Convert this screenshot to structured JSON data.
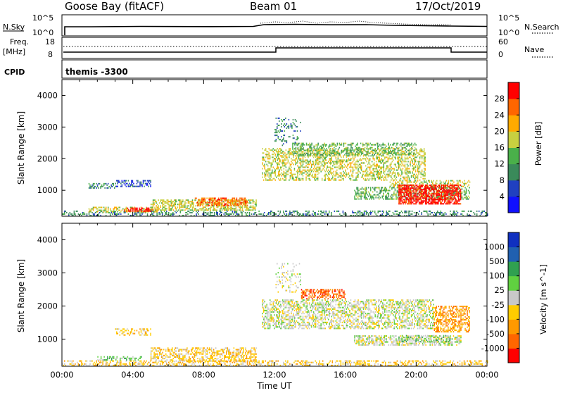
{
  "header": {
    "station": "Goose Bay (fitACF)",
    "beam": "Beam 01",
    "date": "17/Oct/2019"
  },
  "top_panels": {
    "nsky_label": "N.Sky",
    "nsearch_label": "N.Search",
    "nsky_ticks": [
      "10^5",
      "10^0"
    ],
    "nsearch_ticks": [
      "10^5",
      "10^0"
    ],
    "freq_label": "Freq.",
    "freq_unit": "[MHz]",
    "freq_ticks": [
      "18",
      "8"
    ],
    "nave_label": "Nave",
    "nave_ticks": [
      "60",
      "0"
    ],
    "cpid_label": "CPID",
    "cpid_value": "themis -3300"
  },
  "chart_data": [
    {
      "type": "heatmap",
      "name": "power-panel",
      "xlabel": "",
      "ylabel": "Slant Range [km]",
      "xlim": [
        0,
        24
      ],
      "ylim": [
        180,
        4500
      ],
      "yticks": [
        1000,
        2000,
        3000,
        4000
      ],
      "colorbar": {
        "label": "Power [dB]",
        "ticks": [
          "4",
          "8",
          "12",
          "16",
          "20",
          "24",
          "28"
        ],
        "colors": [
          "#1010ff",
          "#2040c0",
          "#3a8a5a",
          "#4ab04a",
          "#c8d040",
          "#ffaa00",
          "#ff6600",
          "#ff0000"
        ]
      },
      "regions": [
        {
          "t0": 0.0,
          "t1": 24.0,
          "r0": 180,
          "r1": 320,
          "level": 2,
          "density": 0.35
        },
        {
          "t0": 1.5,
          "t1": 5.5,
          "r0": 300,
          "r1": 450,
          "level": 4,
          "density": 0.5
        },
        {
          "t0": 3.5,
          "t1": 5.2,
          "r0": 320,
          "r1": 420,
          "level": 7,
          "density": 0.6
        },
        {
          "t0": 5.0,
          "t1": 11.0,
          "r0": 350,
          "r1": 700,
          "level": 4,
          "density": 0.55
        },
        {
          "t0": 7.5,
          "t1": 10.5,
          "r0": 500,
          "r1": 750,
          "level": 6,
          "density": 0.55
        },
        {
          "t0": 1.5,
          "t1": 3.0,
          "r0": 1050,
          "r1": 1200,
          "level": 2,
          "density": 0.5
        },
        {
          "t0": 3.0,
          "t1": 5.0,
          "r0": 1100,
          "r1": 1300,
          "level": 1,
          "density": 0.5
        },
        {
          "t0": 11.3,
          "t1": 20.5,
          "r0": 1300,
          "r1": 2300,
          "level": 4,
          "density": 0.45
        },
        {
          "t0": 13.0,
          "t1": 20.0,
          "r0": 2100,
          "r1": 2500,
          "level": 3,
          "density": 0.4
        },
        {
          "t0": 12.0,
          "t1": 13.5,
          "r0": 2400,
          "r1": 3300,
          "level": 2,
          "density": 0.2
        },
        {
          "t0": 16.5,
          "t1": 23.0,
          "r0": 700,
          "r1": 1100,
          "level": 3,
          "density": 0.5
        },
        {
          "t0": 18.5,
          "t1": 23.0,
          "r0": 1100,
          "r1": 1300,
          "level": 4,
          "density": 0.4
        },
        {
          "t0": 19.0,
          "t1": 22.5,
          "r0": 550,
          "r1": 1150,
          "level": 7,
          "density": 0.7
        }
      ]
    },
    {
      "type": "heatmap",
      "name": "velocity-panel",
      "xlabel": "Time UT",
      "ylabel": "Slant Range [km]",
      "xlim": [
        0,
        24
      ],
      "xticks": [
        "00:00",
        "04:00",
        "08:00",
        "12:00",
        "16:00",
        "20:00",
        "00:00"
      ],
      "ylim": [
        180,
        4500
      ],
      "yticks": [
        1000,
        2000,
        3000,
        4000
      ],
      "colorbar": {
        "label": "Velocity [m s^-1]",
        "ticks": [
          "-1000",
          "-500",
          "-100",
          "-25",
          "25",
          "100",
          "500",
          "1000"
        ],
        "colors": [
          "#ff0000",
          "#ff6600",
          "#ff9900",
          "#ffcc00",
          "#c8c8c8",
          "#60d040",
          "#30a050",
          "#2060b0",
          "#1030c0"
        ]
      },
      "regions": [
        {
          "t0": 0.0,
          "t1": 24.0,
          "r0": 180,
          "r1": 320,
          "level": 3,
          "density": 0.35
        },
        {
          "t0": 5.0,
          "t1": 11.0,
          "r0": 300,
          "r1": 750,
          "level": 3,
          "density": 0.5
        },
        {
          "t0": 2.0,
          "t1": 4.5,
          "r0": 350,
          "r1": 450,
          "level": 5,
          "density": 0.45
        },
        {
          "t0": 3.0,
          "t1": 5.0,
          "r0": 1100,
          "r1": 1300,
          "level": 3,
          "density": 0.4
        },
        {
          "t0": 11.3,
          "t1": 21.0,
          "r0": 1300,
          "r1": 2200,
          "level": 4,
          "density": 0.5
        },
        {
          "t0": 16.5,
          "t1": 22.5,
          "r0": 800,
          "r1": 1100,
          "level": 4,
          "density": 0.55
        },
        {
          "t0": 13.5,
          "t1": 16.0,
          "r0": 2200,
          "r1": 2500,
          "level": 1,
          "density": 0.5
        },
        {
          "t0": 21.0,
          "t1": 23.0,
          "r0": 1200,
          "r1": 2000,
          "level": 2,
          "density": 0.5
        },
        {
          "t0": 19.0,
          "t1": 22.0,
          "r0": 900,
          "r1": 1100,
          "level": 5,
          "density": 0.3
        },
        {
          "t0": 12.0,
          "t1": 13.5,
          "r0": 2400,
          "r1": 3300,
          "level": 4,
          "density": 0.15
        }
      ]
    }
  ]
}
